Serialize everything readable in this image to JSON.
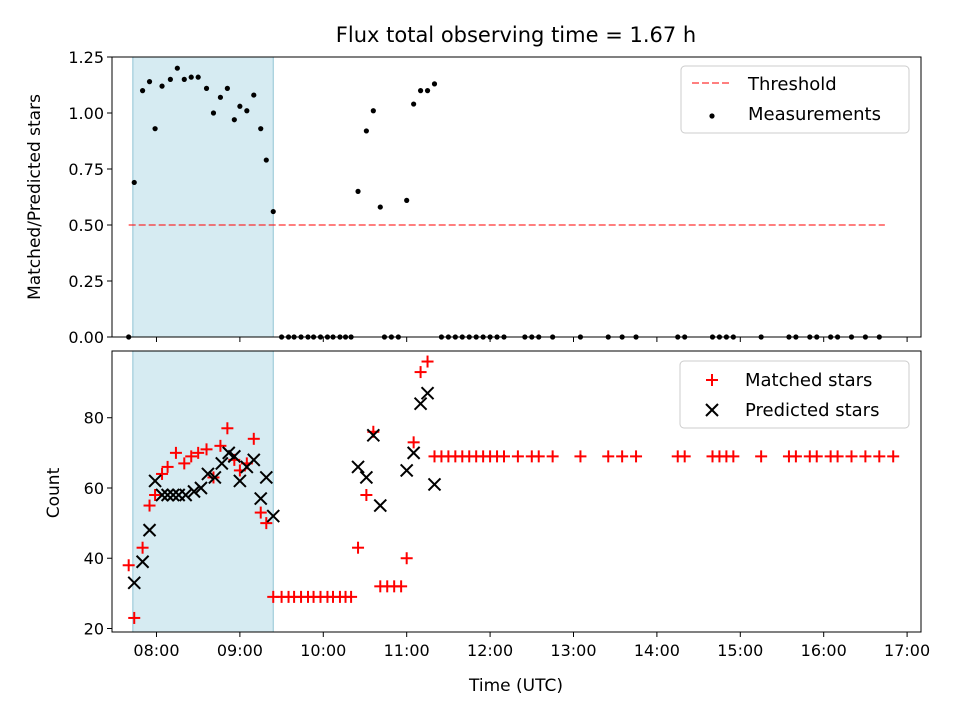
{
  "chart_data": {
    "type": "scatter",
    "title": "Flux total observing time = 1.67 h",
    "xlabel": "Time (UTC)",
    "x_unit": "hours UTC",
    "xlim": [
      "07:28",
      "17:10"
    ],
    "x_ticks": [
      "08:00",
      "09:00",
      "10:00",
      "11:00",
      "12:00",
      "13:00",
      "14:00",
      "15:00",
      "16:00",
      "17:00"
    ],
    "shaded_span": {
      "start": "07:43",
      "end": "09:24",
      "color": "#add8e6"
    },
    "panels": [
      {
        "ylabel": "Matched/Predicted stars",
        "ylim": [
          0,
          1.25
        ],
        "y_ticks": [
          "0.00",
          "0.25",
          "0.50",
          "0.75",
          "1.00",
          "1.25"
        ],
        "legend": {
          "position": "top-right",
          "entries": [
            "Threshold",
            "Measurements"
          ]
        },
        "threshold": {
          "name": "Threshold",
          "y": 0.5,
          "x_start": "07:40",
          "x_end": "16:44",
          "color": "#ff0000",
          "alpha": 0.5,
          "style": "dashed"
        },
        "series": [
          {
            "name": "Measurements",
            "marker": "dot",
            "color": "#000000",
            "points": [
              [
                "07:40",
                0.0
              ],
              [
                "07:44",
                0.69
              ],
              [
                "07:50",
                1.1
              ],
              [
                "07:55",
                1.14
              ],
              [
                "07:59",
                0.93
              ],
              [
                "08:04",
                1.12
              ],
              [
                "08:10",
                1.15
              ],
              [
                "08:15",
                1.2
              ],
              [
                "08:20",
                1.15
              ],
              [
                "08:25",
                1.16
              ],
              [
                "08:30",
                1.16
              ],
              [
                "08:36",
                1.11
              ],
              [
                "08:41",
                1.0
              ],
              [
                "08:46",
                1.07
              ],
              [
                "08:51",
                1.11
              ],
              [
                "08:56",
                0.97
              ],
              [
                "09:00",
                1.03
              ],
              [
                "09:05",
                1.01
              ],
              [
                "09:10",
                1.08
              ],
              [
                "09:15",
                0.93
              ],
              [
                "09:19",
                0.79
              ],
              [
                "09:24",
                0.56
              ],
              [
                "09:30",
                0.0
              ],
              [
                "09:35",
                0.0
              ],
              [
                "09:39",
                0.0
              ],
              [
                "09:44",
                0.0
              ],
              [
                "09:49",
                0.0
              ],
              [
                "09:53",
                0.0
              ],
              [
                "09:58",
                0.0
              ],
              [
                "10:03",
                0.0
              ],
              [
                "10:07",
                0.0
              ],
              [
                "10:12",
                0.0
              ],
              [
                "10:16",
                0.0
              ],
              [
                "10:20",
                0.0
              ],
              [
                "10:25",
                0.65
              ],
              [
                "10:31",
                0.92
              ],
              [
                "10:36",
                1.01
              ],
              [
                "10:41",
                0.58
              ],
              [
                "10:44",
                0.0
              ],
              [
                "10:49",
                0.0
              ],
              [
                "10:54",
                0.0
              ],
              [
                "11:00",
                0.61
              ],
              [
                "11:05",
                1.04
              ],
              [
                "11:10",
                1.1
              ],
              [
                "11:15",
                1.1
              ],
              [
                "11:20",
                1.13
              ],
              [
                "11:25",
                0.0
              ],
              [
                "11:30",
                0.0
              ],
              [
                "11:35",
                0.0
              ],
              [
                "11:40",
                0.0
              ],
              [
                "11:45",
                0.0
              ],
              [
                "11:50",
                0.0
              ],
              [
                "11:55",
                0.0
              ],
              [
                "12:00",
                0.0
              ],
              [
                "12:05",
                0.0
              ],
              [
                "12:10",
                0.0
              ],
              [
                "12:25",
                0.0
              ],
              [
                "12:30",
                0.0
              ],
              [
                "12:35",
                0.0
              ],
              [
                "12:45",
                0.0
              ],
              [
                "13:05",
                0.0
              ],
              [
                "13:25",
                0.0
              ],
              [
                "13:35",
                0.0
              ],
              [
                "13:45",
                0.0
              ],
              [
                "14:15",
                0.0
              ],
              [
                "14:20",
                0.0
              ],
              [
                "14:40",
                0.0
              ],
              [
                "14:45",
                0.0
              ],
              [
                "14:50",
                0.0
              ],
              [
                "14:55",
                0.0
              ],
              [
                "15:15",
                0.0
              ],
              [
                "15:35",
                0.0
              ],
              [
                "15:40",
                0.0
              ],
              [
                "15:50",
                0.0
              ],
              [
                "15:55",
                0.0
              ],
              [
                "16:05",
                0.0
              ],
              [
                "16:10",
                0.0
              ],
              [
                "16:20",
                0.0
              ],
              [
                "16:30",
                0.0
              ],
              [
                "16:40",
                0.0
              ]
            ]
          }
        ]
      },
      {
        "ylabel": "Count",
        "ylim": [
          19,
          99
        ],
        "y_ticks": [
          "20",
          "40",
          "60",
          "80"
        ],
        "legend": {
          "position": "top-right",
          "entries": [
            "Matched stars",
            "Predicted stars"
          ]
        },
        "series": [
          {
            "name": "Matched stars",
            "marker": "plus",
            "color": "#ff0000",
            "points": [
              [
                "07:40",
                38
              ],
              [
                "07:44",
                23
              ],
              [
                "07:50",
                43
              ],
              [
                "07:55",
                55
              ],
              [
                "07:59",
                58
              ],
              [
                "08:04",
                64
              ],
              [
                "08:08",
                66
              ],
              [
                "08:14",
                70
              ],
              [
                "08:20",
                67
              ],
              [
                "08:25",
                69
              ],
              [
                "08:30",
                70
              ],
              [
                "08:36",
                71
              ],
              [
                "08:41",
                63
              ],
              [
                "08:46",
                72
              ],
              [
                "08:51",
                77
              ],
              [
                "08:56",
                68
              ],
              [
                "09:00",
                65
              ],
              [
                "09:05",
                67
              ],
              [
                "09:10",
                74
              ],
              [
                "09:15",
                53
              ],
              [
                "09:19",
                50
              ],
              [
                "09:24",
                29
              ],
              [
                "09:30",
                29
              ],
              [
                "09:35",
                29
              ],
              [
                "09:39",
                29
              ],
              [
                "09:44",
                29
              ],
              [
                "09:49",
                29
              ],
              [
                "09:53",
                29
              ],
              [
                "09:58",
                29
              ],
              [
                "10:03",
                29
              ],
              [
                "10:07",
                29
              ],
              [
                "10:12",
                29
              ],
              [
                "10:16",
                29
              ],
              [
                "10:20",
                29
              ],
              [
                "10:25",
                43
              ],
              [
                "10:31",
                58
              ],
              [
                "10:36",
                76
              ],
              [
                "10:41",
                32
              ],
              [
                "10:46",
                32
              ],
              [
                "10:51",
                32
              ],
              [
                "10:56",
                32
              ],
              [
                "11:00",
                40
              ],
              [
                "11:05",
                73
              ],
              [
                "11:10",
                93
              ],
              [
                "11:15",
                96
              ],
              [
                "11:20",
                69
              ],
              [
                "11:25",
                69
              ],
              [
                "11:30",
                69
              ],
              [
                "11:35",
                69
              ],
              [
                "11:40",
                69
              ],
              [
                "11:45",
                69
              ],
              [
                "11:50",
                69
              ],
              [
                "11:55",
                69
              ],
              [
                "12:00",
                69
              ],
              [
                "12:05",
                69
              ],
              [
                "12:10",
                69
              ],
              [
                "12:20",
                69
              ],
              [
                "12:30",
                69
              ],
              [
                "12:35",
                69
              ],
              [
                "12:45",
                69
              ],
              [
                "13:05",
                69
              ],
              [
                "13:25",
                69
              ],
              [
                "13:35",
                69
              ],
              [
                "13:45",
                69
              ],
              [
                "14:15",
                69
              ],
              [
                "14:20",
                69
              ],
              [
                "14:40",
                69
              ],
              [
                "14:45",
                69
              ],
              [
                "14:50",
                69
              ],
              [
                "14:55",
                69
              ],
              [
                "15:15",
                69
              ],
              [
                "15:35",
                69
              ],
              [
                "15:40",
                69
              ],
              [
                "15:50",
                69
              ],
              [
                "15:55",
                69
              ],
              [
                "16:05",
                69
              ],
              [
                "16:10",
                69
              ],
              [
                "16:20",
                69
              ],
              [
                "16:30",
                69
              ],
              [
                "16:40",
                69
              ],
              [
                "16:50",
                69
              ]
            ]
          },
          {
            "name": "Predicted stars",
            "marker": "x",
            "color": "#000000",
            "points": [
              [
                "07:44",
                33
              ],
              [
                "07:50",
                39
              ],
              [
                "07:55",
                48
              ],
              [
                "07:59",
                62
              ],
              [
                "08:04",
                58
              ],
              [
                "08:08",
                58
              ],
              [
                "08:12",
                58
              ],
              [
                "08:16",
                58
              ],
              [
                "08:21",
                58
              ],
              [
                "08:27",
                59
              ],
              [
                "08:32",
                60
              ],
              [
                "08:37",
                64
              ],
              [
                "08:42",
                63
              ],
              [
                "08:47",
                67
              ],
              [
                "08:52",
                70
              ],
              [
                "08:56",
                69
              ],
              [
                "09:00",
                62
              ],
              [
                "09:05",
                66
              ],
              [
                "09:10",
                68
              ],
              [
                "09:15",
                57
              ],
              [
                "09:19",
                63
              ],
              [
                "09:24",
                52
              ],
              [
                "10:25",
                66
              ],
              [
                "10:31",
                63
              ],
              [
                "10:36",
                75
              ],
              [
                "10:41",
                55
              ],
              [
                "11:00",
                65
              ],
              [
                "11:05",
                70
              ],
              [
                "11:10",
                84
              ],
              [
                "11:15",
                87
              ],
              [
                "11:20",
                61
              ]
            ]
          }
        ]
      }
    ]
  }
}
